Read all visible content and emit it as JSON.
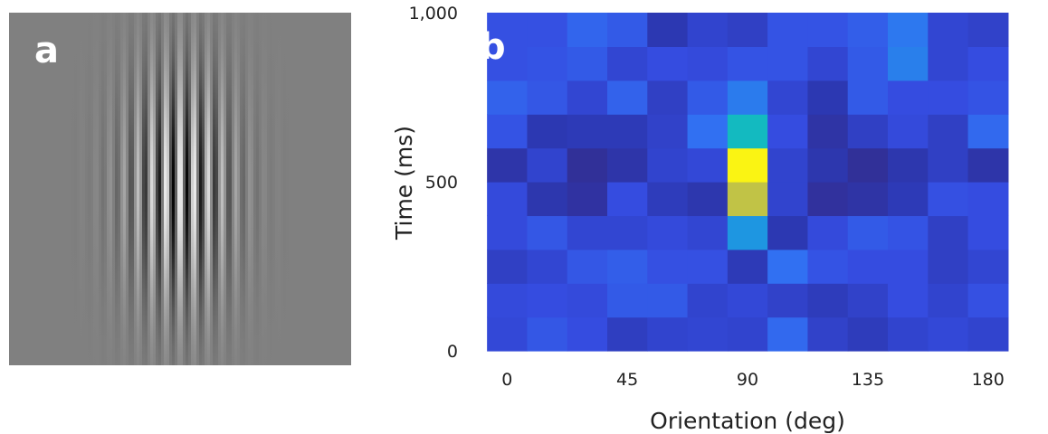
{
  "colors": {
    "background": "#ffffff",
    "gabor_background": "#808080",
    "text": "#222222"
  },
  "panel_a": {
    "label": "a",
    "stimulus": {
      "type": "gabor",
      "orientation_deg": 90,
      "background_gray": 0.5
    }
  },
  "chart_data": {
    "type": "heatmap",
    "panel_label": "b",
    "title": "",
    "xlabel": "Orientation (deg)",
    "ylabel": "Time (ms)",
    "xticks": [
      {
        "value": 0,
        "label": "0"
      },
      {
        "value": 45,
        "label": "45"
      },
      {
        "value": 90,
        "label": "90"
      },
      {
        "value": 135,
        "label": "135"
      },
      {
        "value": 180,
        "label": "180"
      }
    ],
    "yticks": [
      {
        "value": 0,
        "label": "0"
      },
      {
        "value": 500,
        "label": "500"
      },
      {
        "value": 1000,
        "label": "1,000"
      }
    ],
    "xlim": [
      -15,
      195
    ],
    "ylim": [
      0,
      1000
    ],
    "x_centers": [
      0,
      15,
      30,
      45,
      60,
      75,
      90,
      105,
      120,
      135,
      150,
      165,
      180
    ],
    "y_centers": [
      50,
      150,
      250,
      350,
      450,
      550,
      650,
      750,
      850,
      950
    ],
    "colormap": "parula",
    "values": [
      [
        0.18,
        0.23,
        0.2,
        0.13,
        0.16,
        0.17,
        0.16,
        0.28,
        0.15,
        0.12,
        0.16,
        0.18,
        0.16
      ],
      [
        0.19,
        0.2,
        0.19,
        0.24,
        0.24,
        0.16,
        0.18,
        0.15,
        0.12,
        0.15,
        0.2,
        0.16,
        0.21
      ],
      [
        0.14,
        0.17,
        0.23,
        0.25,
        0.21,
        0.21,
        0.11,
        0.3,
        0.22,
        0.2,
        0.2,
        0.14,
        0.17
      ],
      [
        0.19,
        0.23,
        0.17,
        0.17,
        0.19,
        0.17,
        0.4,
        0.1,
        0.19,
        0.24,
        0.22,
        0.14,
        0.2
      ],
      [
        0.19,
        0.09,
        0.06,
        0.2,
        0.12,
        0.09,
        0.75,
        0.16,
        0.05,
        0.07,
        0.11,
        0.21,
        0.2
      ],
      [
        0.08,
        0.16,
        0.04,
        0.08,
        0.16,
        0.18,
        0.98,
        0.16,
        0.09,
        0.04,
        0.09,
        0.14,
        0.08
      ],
      [
        0.22,
        0.1,
        0.11,
        0.11,
        0.15,
        0.3,
        0.52,
        0.2,
        0.07,
        0.14,
        0.19,
        0.14,
        0.28
      ],
      [
        0.26,
        0.23,
        0.17,
        0.26,
        0.14,
        0.24,
        0.33,
        0.17,
        0.1,
        0.24,
        0.2,
        0.2,
        0.22
      ],
      [
        0.21,
        0.22,
        0.24,
        0.17,
        0.2,
        0.19,
        0.22,
        0.22,
        0.17,
        0.24,
        0.34,
        0.17,
        0.2
      ],
      [
        0.21,
        0.21,
        0.27,
        0.24,
        0.1,
        0.16,
        0.14,
        0.22,
        0.22,
        0.25,
        0.32,
        0.17,
        0.15
      ]
    ]
  }
}
